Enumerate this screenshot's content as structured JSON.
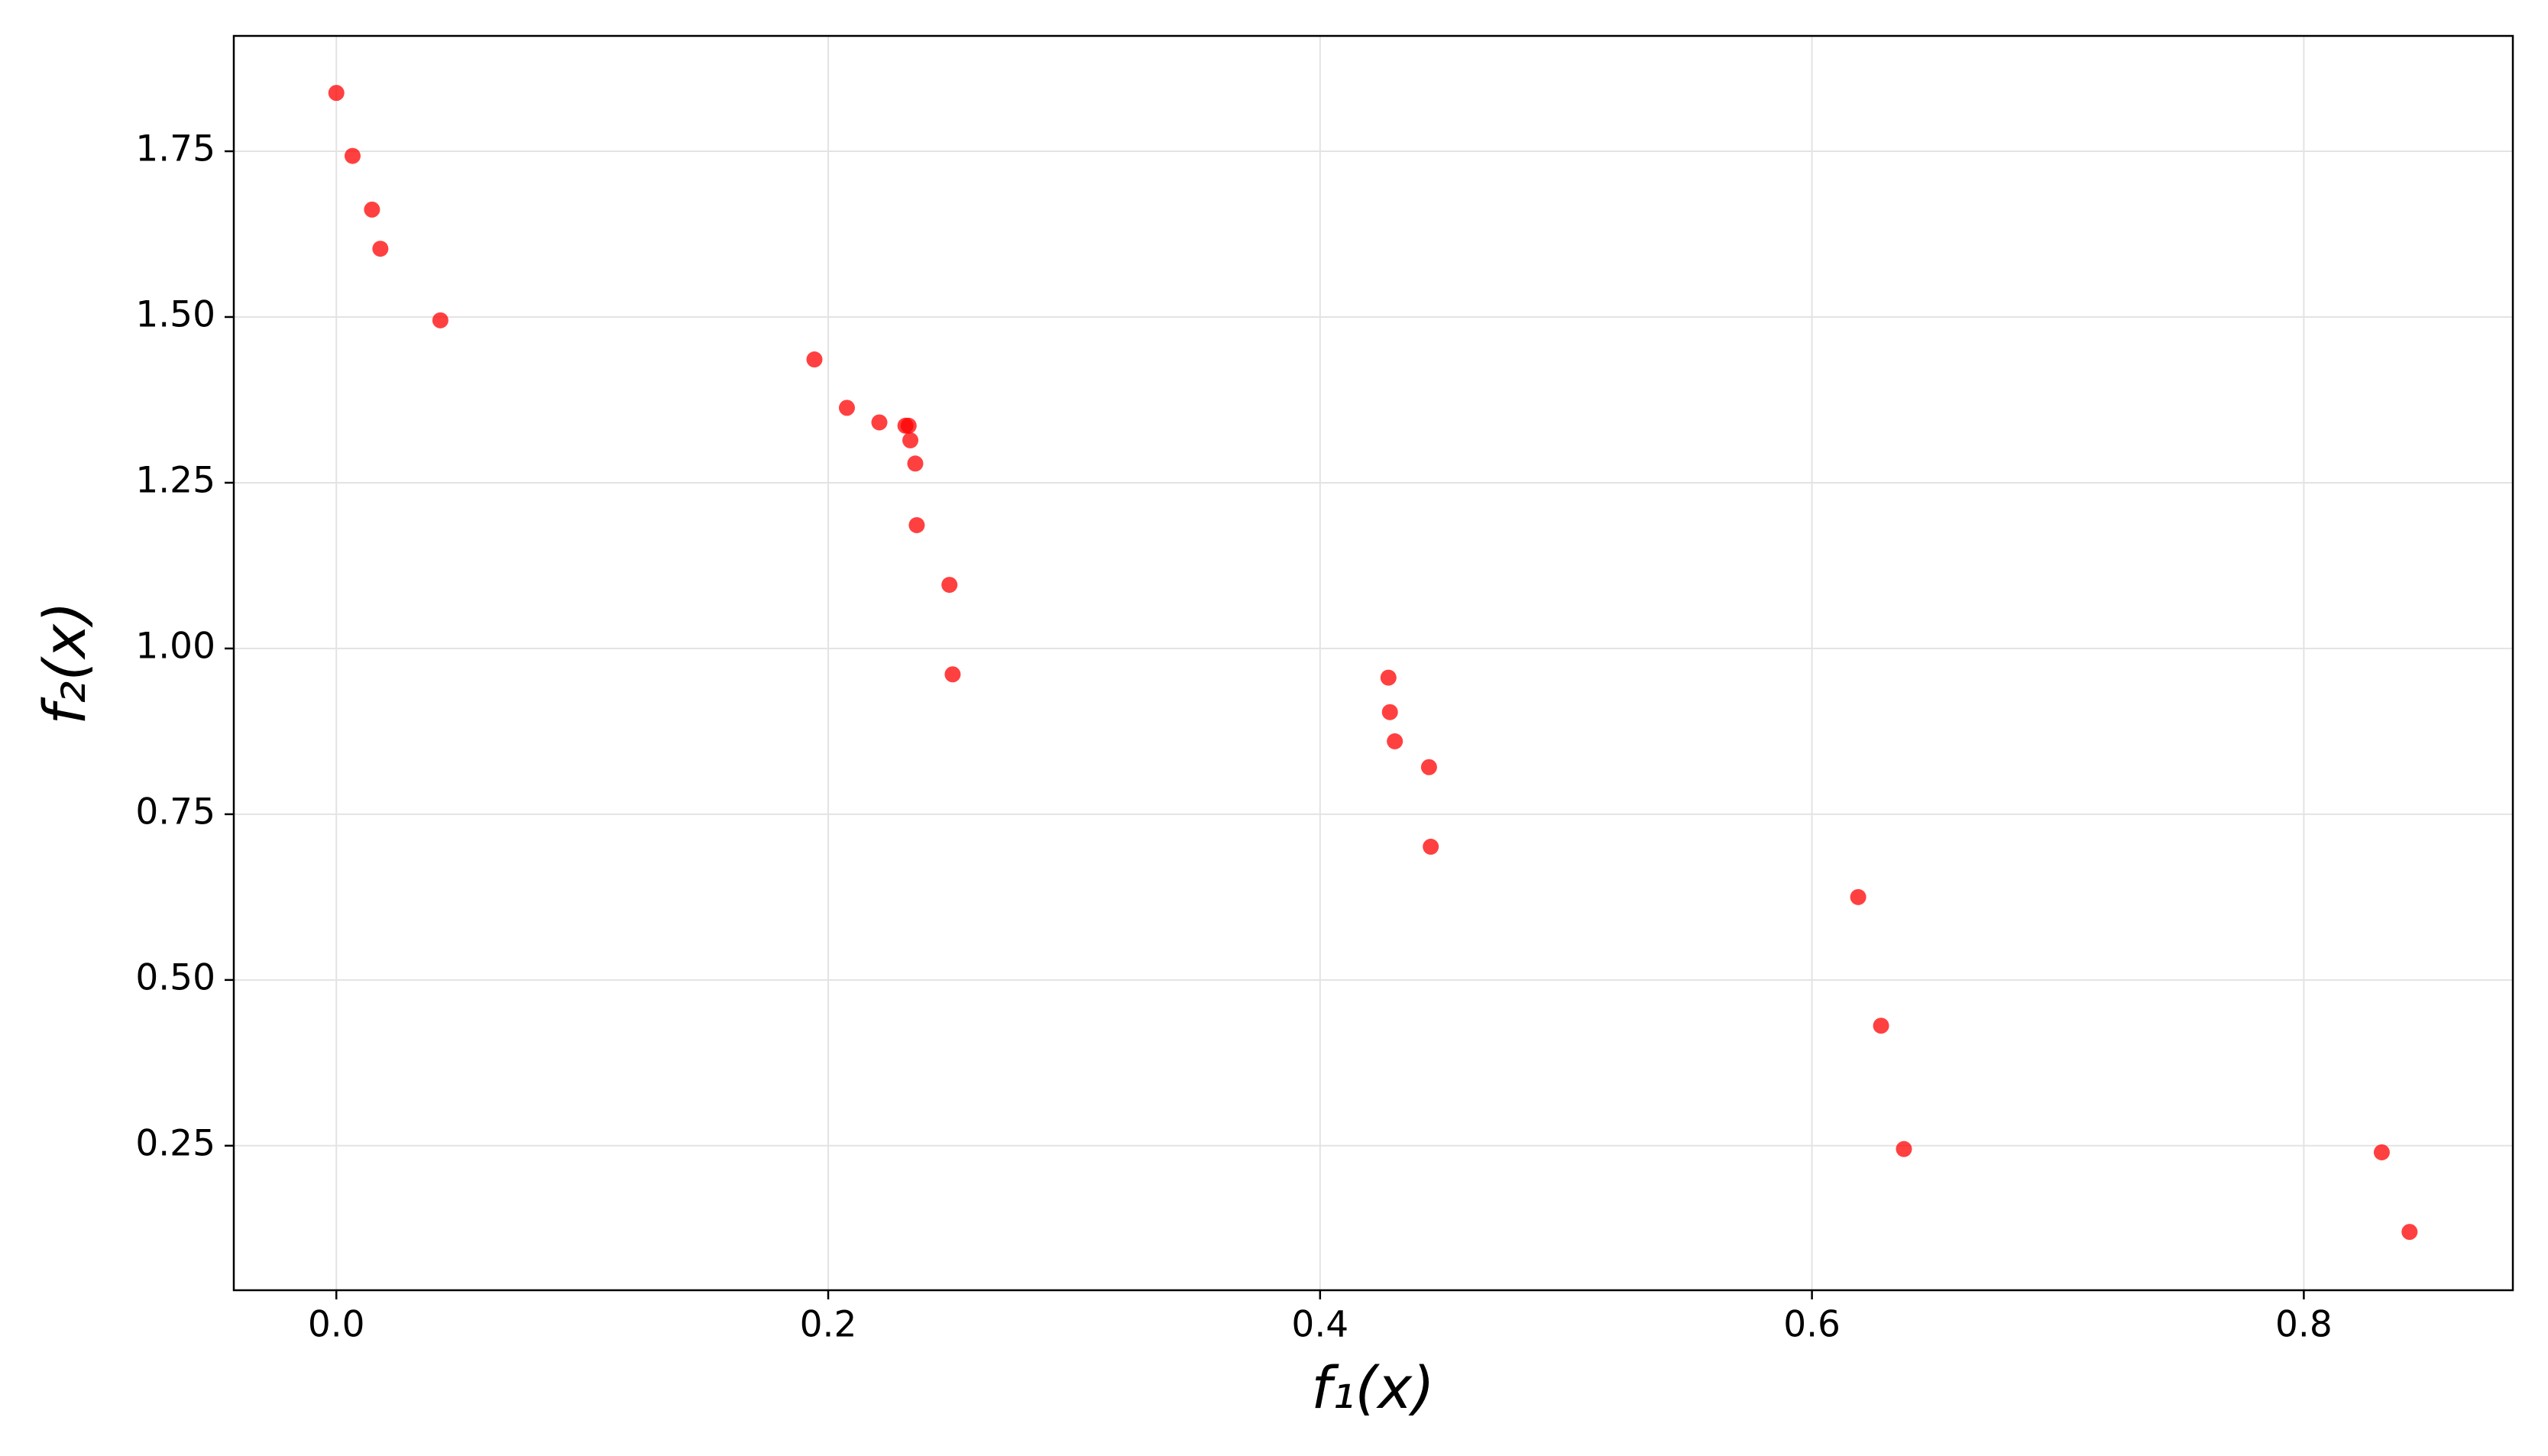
{
  "chart_data": {
    "type": "scatter",
    "x_label": "f₁(x)",
    "y_label": "f₂(x)",
    "series": [
      {
        "color": "#ff0000",
        "x": [
          0,
          0.0066,
          0.0145,
          0.0179,
          0.0423,
          0.1944,
          0.2076,
          0.2208,
          0.2314,
          0.2327,
          0.2334,
          0.2354,
          0.236,
          0.2493,
          0.2506,
          0.4278,
          0.4284,
          0.4304,
          0.4443,
          0.445,
          0.6188,
          0.6281,
          0.6374,
          0.8317,
          0.843
        ],
        "values": [
          1.838,
          1.743,
          1.662,
          1.603,
          1.495,
          1.436,
          1.363,
          1.341,
          1.336,
          1.336,
          1.314,
          1.279,
          1.186,
          1.096,
          0.961,
          0.956,
          0.904,
          0.86,
          0.821,
          0.701,
          0.625,
          0.431,
          0.245,
          0.24,
          0.12
        ]
      }
    ],
    "xlim": [
      -0.0417,
      0.885
    ],
    "ylim": [
      0.032,
      1.924
    ],
    "xticks": [
      {
        "value": 0,
        "label": "0.0"
      },
      0.2,
      0.4,
      0.6,
      0.8
    ],
    "yticks": [
      0.25,
      {
        "value": 0.5,
        "label": "0.50"
      },
      0.75,
      {
        "value": 1,
        "label": "1.00"
      },
      1.25,
      {
        "value": 1.5,
        "label": "1.50"
      },
      1.75
    ],
    "grid": true
  }
}
